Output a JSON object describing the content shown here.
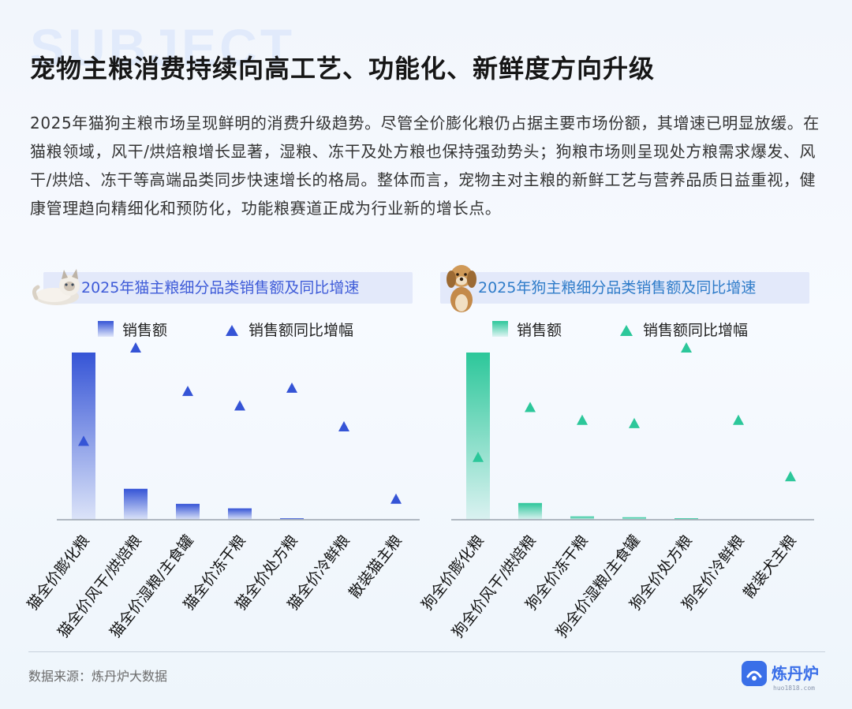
{
  "background_word": "SUBJECT",
  "title": "宠物主粮消费持续向高工艺、功能化、新鲜度方向升级",
  "intro": "2025年猫狗主粮市场呈现鲜明的消费升级趋势。尽管全价膨化粮仍占据主要市场份额，其增速已明显放缓。在猫粮领域，风干/烘焙粮增长显著，湿粮、冻干及处方粮也保持强劲势头；狗粮市场则呈现处方粮需求爆发、风干/烘焙、冻干等高端品类同步快速增长的格局。整体而言，宠物主对主粮的新鲜工艺与营养品质日益重视，健康管理趋向精细化和预防化，功能粮赛道正成为行业新的增长点。",
  "colors": {
    "cat_accent": "#3554d6",
    "dog_accent": "#2cc79a"
  },
  "icons": {
    "cat": "cat-icon",
    "dog": "dog-icon"
  },
  "chart_data": [
    {
      "type": "bar",
      "title": "2025年猫主粮细分品类销售额及同比增速",
      "legend": {
        "bar": "销售额",
        "marker": "销售额同比增幅"
      },
      "categories": [
        "猫全价膨化粮",
        "猫全价风干/烘焙粮",
        "猫全价湿粮/主食罐",
        "猫全价冻干粮",
        "猫全价处方粮",
        "猫全价冷鲜粮",
        "散装猫主粮"
      ],
      "series": [
        {
          "name": "销售额",
          "kind": "bar",
          "values": [
            100,
            18.5,
            9.5,
            6.8,
            0.8,
            0,
            0
          ]
        },
        {
          "name": "销售额同比增幅",
          "kind": "marker",
          "values": [
            42,
            100,
            73,
            64,
            75,
            51,
            6
          ]
        }
      ],
      "ylim": [
        0,
        100
      ]
    },
    {
      "type": "bar",
      "title": "2025年狗主粮细分品类销售额及同比增速",
      "legend": {
        "bar": "销售额",
        "marker": "销售额同比增幅"
      },
      "categories": [
        "狗全价膨化粮",
        "狗全价风干/烘焙粮",
        "狗全价冻干粮",
        "狗全价湿粮/主食罐",
        "狗全价处方粮",
        "狗全价冷鲜粮",
        "散装犬主粮"
      ],
      "series": [
        {
          "name": "销售额",
          "kind": "bar",
          "values": [
            100,
            10,
            2,
            1.5,
            0.5,
            0,
            0
          ]
        },
        {
          "name": "销售额同比增幅",
          "kind": "marker",
          "values": [
            32,
            63,
            55,
            53,
            100,
            55,
            20
          ]
        }
      ],
      "ylim": [
        0,
        100
      ]
    }
  ],
  "footer": {
    "source": "数据来源：炼丹炉大数据",
    "logo_text": "炼丹炉",
    "logo_sub": "huo1818.com"
  }
}
